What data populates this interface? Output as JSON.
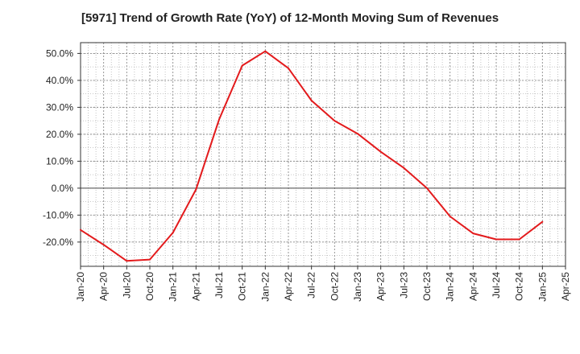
{
  "chart_data": {
    "type": "line",
    "title": "[5971]  Trend of Growth Rate (YoY) of 12-Month Moving Sum of Revenues",
    "xlabel": "",
    "ylabel": "",
    "ylim": [
      -29,
      54
    ],
    "grid": true,
    "x_tick_labels": [
      "Jan-20",
      "Apr-20",
      "Jul-20",
      "Oct-20",
      "Jan-21",
      "Apr-21",
      "Jul-21",
      "Oct-21",
      "Jan-22",
      "Apr-22",
      "Jul-22",
      "Oct-22",
      "Jan-23",
      "Apr-23",
      "Jul-23",
      "Oct-23",
      "Jan-24",
      "Apr-24",
      "Jul-24",
      "Oct-24",
      "Jan-25",
      "Apr-25"
    ],
    "y_ticks": [
      50,
      40,
      30,
      20,
      10,
      0,
      -10,
      -20
    ],
    "y_tick_labels": [
      "50.0%",
      "40.0%",
      "30.0%",
      "20.0%",
      "10.0%",
      "0.0%",
      "-10.0%",
      "-20.0%"
    ],
    "series": [
      {
        "color": "#e31a1c",
        "x": [
          "Jan-20",
          "Apr-20",
          "Jul-20",
          "Oct-20",
          "Jan-21",
          "Apr-21",
          "Jul-21",
          "Oct-21",
          "Jan-22",
          "Apr-22",
          "Jul-22",
          "Oct-22",
          "Jan-23",
          "Apr-23",
          "Jul-23",
          "Oct-23",
          "Jan-24",
          "Apr-24",
          "Jul-24",
          "Oct-24",
          "Jan-25"
        ],
        "values": [
          -15.5,
          -21.0,
          -27.0,
          -26.5,
          -16.5,
          -0.5,
          25.5,
          45.5,
          50.8,
          44.5,
          32.5,
          25.0,
          20.2,
          13.5,
          7.5,
          0.0,
          -10.5,
          -16.8,
          -19.0,
          -19.0,
          -12.5
        ]
      }
    ]
  }
}
